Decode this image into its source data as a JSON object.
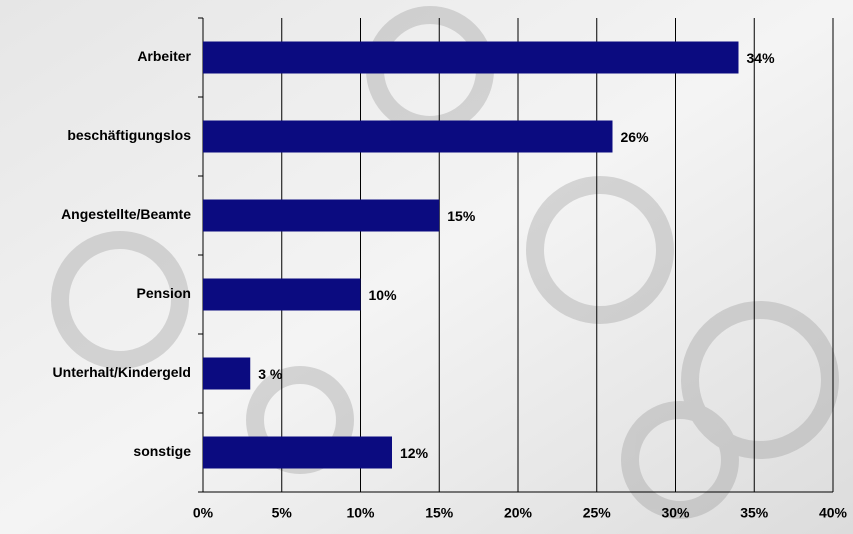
{
  "chart_data": {
    "type": "bar",
    "orientation": "horizontal",
    "categories": [
      "Arbeiter",
      "beschäftigungslos",
      "Angestellte/Beamte",
      "Pension",
      "Unterhalt/Kindergeld",
      "sonstige"
    ],
    "values": [
      34,
      26,
      15,
      10,
      3,
      12
    ],
    "value_labels": [
      "34%",
      "26%",
      "15%",
      "10%",
      "3 %",
      "12%"
    ],
    "color": "#0b0b80",
    "xlim": [
      0,
      40
    ],
    "xticks": [
      {
        "value": 0,
        "label": "0%"
      },
      {
        "value": 5,
        "label": "5%"
      },
      {
        "value": 10,
        "label": "10%"
      },
      {
        "value": 15,
        "label": "15%"
      },
      {
        "value": 20,
        "label": "20%"
      },
      {
        "value": 25,
        "label": "25%"
      },
      {
        "value": 30,
        "label": "30%"
      },
      {
        "value": 35,
        "label": "35%"
      },
      {
        "value": 40,
        "label": "40%"
      }
    ],
    "grid": true
  }
}
